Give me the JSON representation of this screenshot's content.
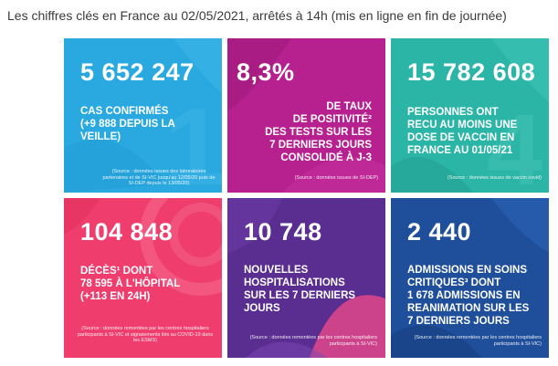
{
  "heading": "Les chiffres clés en France au 02/05/2021, arrêtés à 14h (mis en ligne en fin de journée)",
  "tiles": [
    {
      "number": "5 652 247",
      "lines": [
        "CAS CONFIRMÉS",
        "(+9 888 DEPUIS LA",
        "VEILLE)"
      ],
      "source": "(Source : données issues des laboratoires partenaires et de SI-VIC jusqu'au 12/05/20 puis de SI-DEP depuis le 13/05/20)",
      "color": "#2aa9e0"
    },
    {
      "number": "8,3%",
      "lines": [
        "DE TAUX",
        "DE POSITIVITÉ²",
        "DES TESTS SUR LES",
        "7 DERNIERS JOURS",
        "CONSOLIDÉ À J-3"
      ],
      "source": "(Source : données issues de SI-DEP)",
      "color": "#b6208f"
    },
    {
      "number": "15 782 608",
      "lines": [
        "PERSONNES ONT",
        "RECU AU MOINS UNE",
        "DOSE DE VACCIN EN",
        "FRANCE AU 01/05/21"
      ],
      "source": "(Source : données issues de vaccin covid)",
      "color": "#2bb5a7"
    },
    {
      "number": "104 848",
      "lines": [
        "DÉCÈS¹ DONT",
        "78 595 À L'HÔPITAL",
        "(+113 EN 24H)"
      ],
      "source": "(Source : données remontées par les centres hospitaliers participants à SI-VIC et signalements liés au COVID-19 dans les ESMS)",
      "color": "#ef3e6d"
    },
    {
      "number": "10 748",
      "lines": [
        "NOUVELLES",
        "HOSPITALISATIONS",
        "SUR LES 7 DERNIERS",
        "JOURS"
      ],
      "source": "(Source : données remontées par les centres hospitaliers participants à SI-VIC)",
      "color": "#5a2d91"
    },
    {
      "number": "2 440",
      "lines": [
        "ADMISSIONS EN SOINS",
        "CRITIQUES³ DONT",
        "1 678 ADMISSIONS EN",
        "REANIMATION SUR LES",
        "7 DERNIERS JOURS"
      ],
      "source": "(Source : données remontées par les centres hospitaliers participants à SI-VIC)",
      "color": "#1f4e9a"
    }
  ]
}
